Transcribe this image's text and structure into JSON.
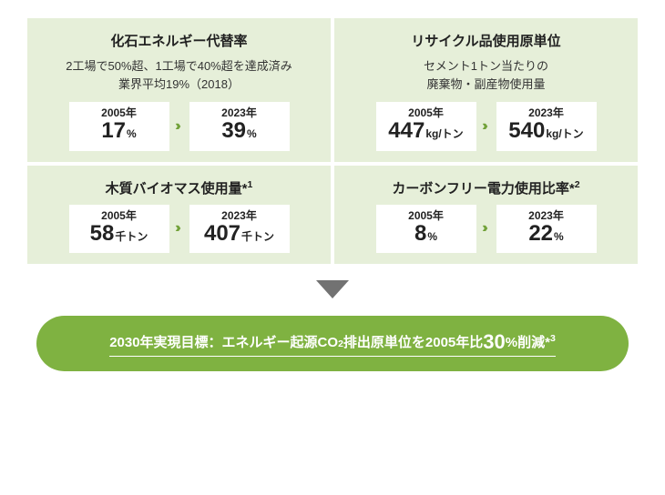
{
  "colors": {
    "card_bg": "#e6efd9",
    "accent": "#72a23a",
    "pill_bg": "#7fb241",
    "pill_text": "#ffffff",
    "arrow_gray": "#727272",
    "text": "#222222"
  },
  "cards": [
    {
      "title": "化石エネルギー代替率",
      "sub_line1": "2工場で50%超、1工場で40%超を達成済み",
      "sub_line2": "業界平均19%（2018）",
      "from": {
        "year": "2005年",
        "value": "17",
        "unit": "%"
      },
      "to": {
        "year": "2023年",
        "value": "39",
        "unit": "%"
      }
    },
    {
      "title": "リサイクル品使用原単位",
      "sub_line1": "セメント1トン当たりの",
      "sub_line2": "廃棄物・副産物使用量",
      "from": {
        "year": "2005年",
        "value": "447",
        "unit": "kg/トン"
      },
      "to": {
        "year": "2023年",
        "value": "540",
        "unit": "kg/トン"
      }
    },
    {
      "title_html": "木質バイオマス使用量*",
      "title_sup": "1",
      "from": {
        "year": "2005年",
        "value": "58",
        "unit": "千トン"
      },
      "to": {
        "year": "2023年",
        "value": "407",
        "unit": "千トン"
      }
    },
    {
      "title_html": "カーボンフリー電力使用比率*",
      "title_sup": "2",
      "from": {
        "year": "2005年",
        "value": "8",
        "unit": "%"
      },
      "to": {
        "year": "2023年",
        "value": "22",
        "unit": "%"
      }
    }
  ],
  "arrows_glyph": "›››",
  "goal": {
    "prefix": "2030年実現目標：エネルギー起源CO",
    "co2_sub": "2",
    "mid": "排出原単位を2005年比",
    "big": "30",
    "suffix": "%削減*",
    "sup": "3"
  }
}
